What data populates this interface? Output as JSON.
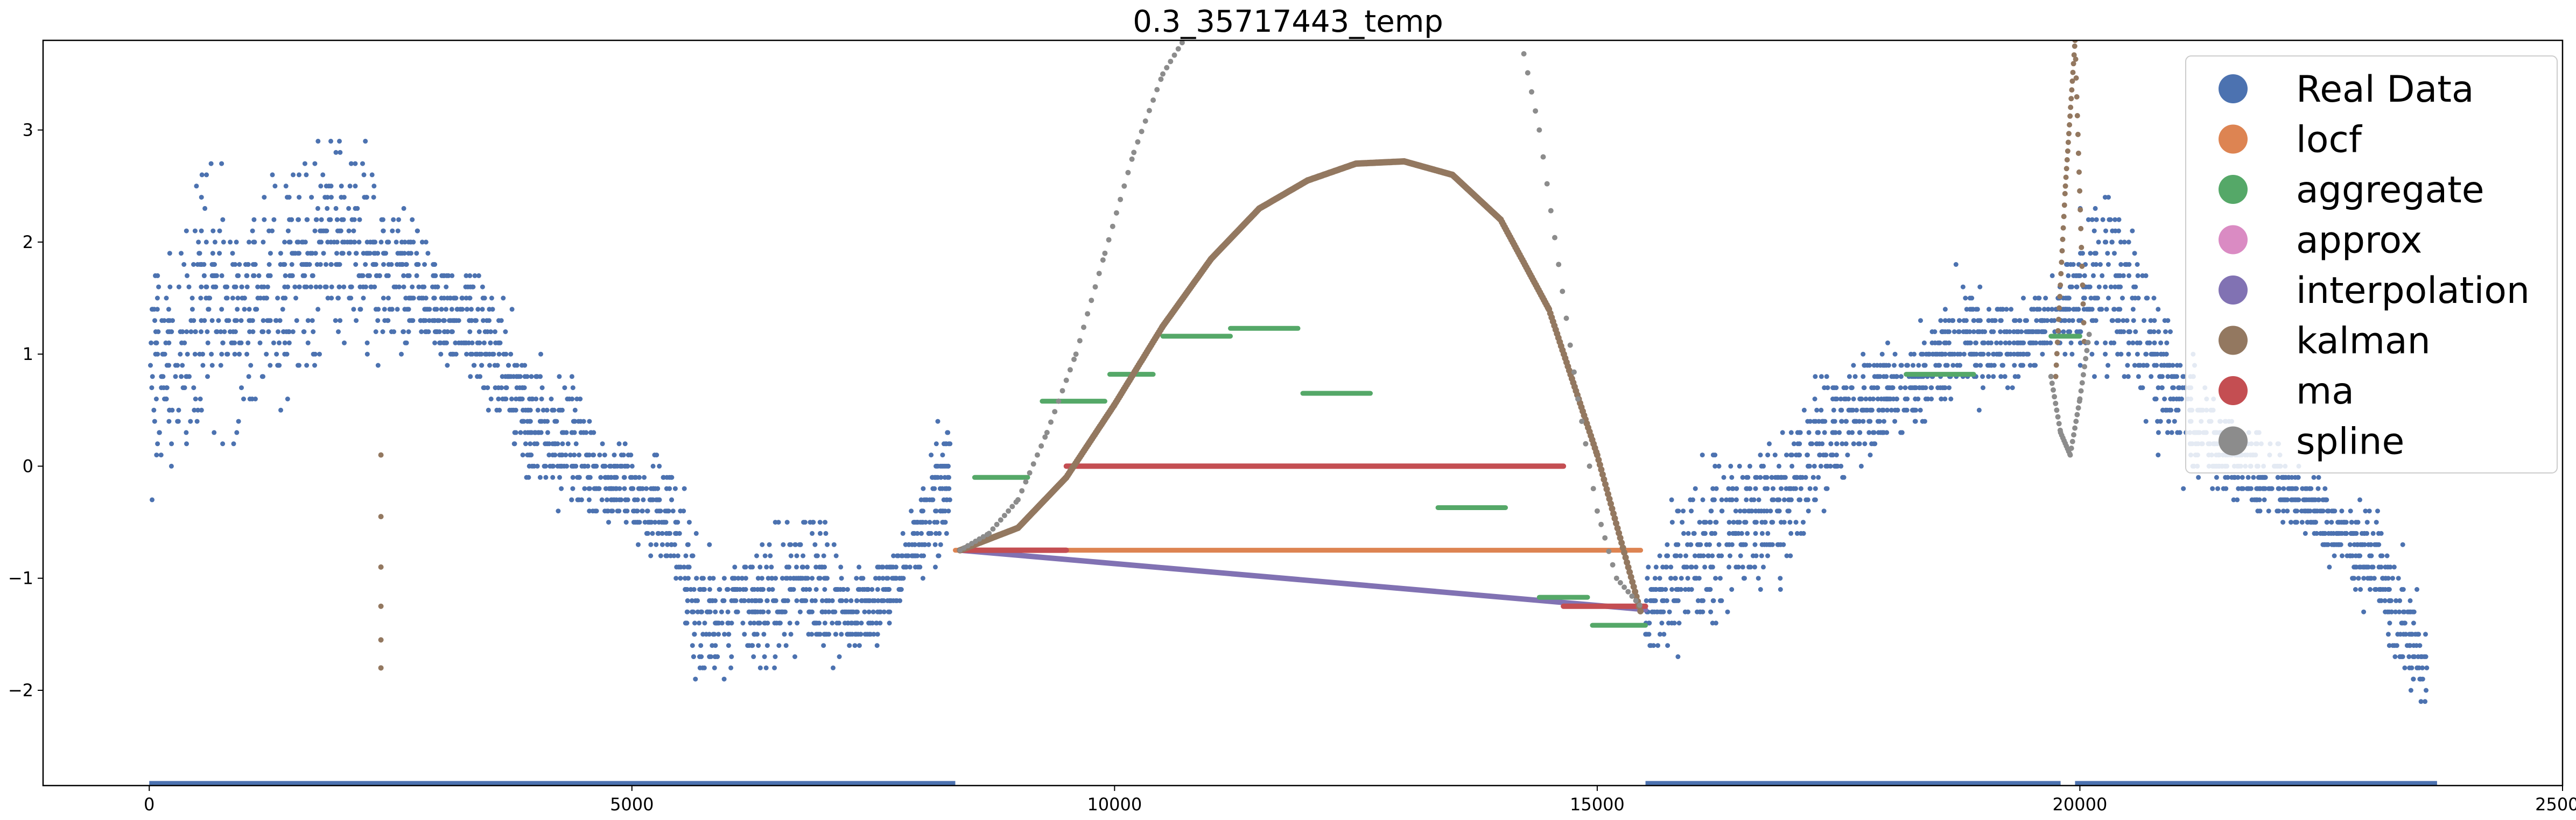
{
  "chart_data": {
    "type": "scatter",
    "title": "0.3_35717443_temp",
    "xlabel": "",
    "ylabel": "",
    "xlim": [
      -1100,
      25000
    ],
    "ylim": [
      -2.85,
      3.8
    ],
    "xticks": [
      0,
      5000,
      10000,
      15000,
      20000,
      25000
    ],
    "yticks": [
      -2,
      -1,
      0,
      1,
      2,
      3
    ],
    "xtick_labels": [
      "0",
      "5000",
      "10000",
      "15000",
      "20000",
      "25000"
    ],
    "ytick_labels": [
      "−2",
      "−1",
      "0",
      "1",
      "2",
      "3"
    ],
    "grid": false,
    "legend_position": "top-right",
    "series": [
      {
        "name": "Real Data",
        "color": "#4c72b0",
        "envelope": [
          [
            0,
            -0.6,
            2.0
          ],
          [
            300,
            -0.2,
            2.2
          ],
          [
            600,
            0.2,
            3.2
          ],
          [
            900,
            0.0,
            2.5
          ],
          [
            1200,
            0.2,
            2.8
          ],
          [
            1500,
            0.6,
            2.9
          ],
          [
            1800,
            0.8,
            3.1
          ],
          [
            2100,
            0.9,
            3.1
          ],
          [
            2400,
            0.7,
            2.7
          ],
          [
            2700,
            0.8,
            2.3
          ],
          [
            3000,
            0.7,
            2.1
          ],
          [
            3300,
            0.6,
            1.9
          ],
          [
            3600,
            0.2,
            1.8
          ],
          [
            3900,
            -0.3,
            1.2
          ],
          [
            4200,
            -0.5,
            1.0
          ],
          [
            4500,
            -0.6,
            0.8
          ],
          [
            4800,
            -0.7,
            0.4
          ],
          [
            5100,
            -0.8,
            0.2
          ],
          [
            5400,
            -1.2,
            0.3
          ],
          [
            5700,
            -2.2,
            -0.6
          ],
          [
            6000,
            -1.9,
            -0.6
          ],
          [
            6300,
            -1.9,
            -0.7
          ],
          [
            6600,
            -1.9,
            -0.3
          ],
          [
            6900,
            -1.8,
            -0.1
          ],
          [
            7200,
            -1.8,
            -0.8
          ],
          [
            7500,
            -1.7,
            -0.8
          ],
          [
            7800,
            -1.3,
            -0.6
          ],
          [
            8100,
            -1.1,
            0.3
          ],
          [
            8300,
            -0.8,
            0.6
          ],
          [
            15500,
            -1.9,
            -0.9
          ],
          [
            15800,
            -1.8,
            -0.2
          ],
          [
            16100,
            -1.6,
            0.2
          ],
          [
            16400,
            -1.6,
            0.5
          ],
          [
            16700,
            -1.3,
            0.4
          ],
          [
            17000,
            -1.0,
            0.6
          ],
          [
            17300,
            -0.8,
            1.0
          ],
          [
            17600,
            -0.2,
            1.2
          ],
          [
            17900,
            0.0,
            1.2
          ],
          [
            18200,
            0.2,
            1.1
          ],
          [
            18500,
            0.3,
            1.5
          ],
          [
            18800,
            0.4,
            1.9
          ],
          [
            19100,
            0.6,
            1.6
          ],
          [
            19400,
            0.7,
            1.5
          ],
          [
            19700,
            0.9,
            1.7
          ],
          [
            20000,
            0.9,
            2.3
          ],
          [
            20300,
            0.6,
            2.7
          ],
          [
            20600,
            0.3,
            2.2
          ],
          [
            20900,
            0.0,
            1.5
          ],
          [
            21200,
            -0.3,
            1.0
          ],
          [
            21500,
            -0.4,
            0.6
          ],
          [
            21800,
            -0.5,
            0.4
          ],
          [
            22100,
            -0.6,
            0.2
          ],
          [
            22400,
            -0.8,
            0.1
          ],
          [
            22700,
            -1.0,
            -0.2
          ],
          [
            23000,
            -1.5,
            -0.1
          ],
          [
            23300,
            -2.0,
            -0.6
          ],
          [
            23600,
            -2.35,
            -1.3
          ]
        ],
        "gaps": [
          [
            8400,
            15400
          ]
        ],
        "bottom_bars": [
          [
            0,
            8350
          ],
          [
            15500,
            19800
          ],
          [
            19950,
            23700
          ]
        ]
      },
      {
        "name": "locf",
        "color": "#dd8452",
        "segments": [
          [
            [
              8350,
              -0.75
            ],
            [
              15450,
              -0.75
            ]
          ]
        ]
      },
      {
        "name": "aggregate",
        "color": "#55a868",
        "segments": [
          [
            [
              8550,
              -0.1
            ],
            [
              9100,
              -0.1
            ]
          ],
          [
            [
              9250,
              0.58
            ],
            [
              9900,
              0.58
            ]
          ],
          [
            [
              9950,
              0.82
            ],
            [
              10400,
              0.82
            ]
          ],
          [
            [
              10500,
              1.16
            ],
            [
              11200,
              1.16
            ]
          ],
          [
            [
              11200,
              1.23
            ],
            [
              11900,
              1.23
            ]
          ],
          [
            [
              11950,
              0.65
            ],
            [
              12650,
              0.65
            ]
          ],
          [
            [
              13350,
              -0.37
            ],
            [
              14050,
              -0.37
            ]
          ],
          [
            [
              14400,
              -1.17
            ],
            [
              14900,
              -1.17
            ]
          ],
          [
            [
              14950,
              -1.42
            ],
            [
              15500,
              -1.42
            ]
          ],
          [
            [
              18200,
              0.82
            ],
            [
              18900,
              0.82
            ]
          ],
          [
            [
              19700,
              1.16
            ],
            [
              20000,
              1.16
            ]
          ]
        ]
      },
      {
        "name": "approx",
        "color": "#da8bc3",
        "segments": []
      },
      {
        "name": "interpolation",
        "color": "#8172b3",
        "segments": [
          [
            [
              8400,
              -0.75
            ],
            [
              15500,
              -1.28
            ]
          ]
        ]
      },
      {
        "name": "kalman",
        "color": "#937860",
        "curve": [
          [
            8400,
            -0.75
          ],
          [
            9000,
            -0.55
          ],
          [
            9500,
            -0.1
          ],
          [
            10000,
            0.55
          ],
          [
            10500,
            1.25
          ],
          [
            11000,
            1.85
          ],
          [
            11500,
            2.3
          ],
          [
            12000,
            2.55
          ],
          [
            12500,
            2.7
          ],
          [
            13000,
            2.72
          ],
          [
            13500,
            2.6
          ],
          [
            14000,
            2.2
          ],
          [
            14500,
            1.4
          ],
          [
            15000,
            0.1
          ],
          [
            15450,
            -1.3
          ]
        ],
        "spike": [
          [
            19750,
            0.8
          ],
          [
            19850,
            2.5
          ],
          [
            19950,
            3.8
          ],
          [
            20050,
            1.0
          ]
        ],
        "dropout_x": 2400,
        "dropout_y": [
          0.1,
          -0.45,
          -0.9,
          -1.25,
          -1.55,
          -1.8
        ]
      },
      {
        "name": "ma",
        "color": "#c44e52",
        "segments": [
          [
            [
              8400,
              -0.75
            ],
            [
              9500,
              -0.75
            ]
          ],
          [
            [
              9500,
              0.0
            ],
            [
              14650,
              0.0
            ]
          ],
          [
            [
              14650,
              -1.25
            ],
            [
              15500,
              -1.25
            ]
          ]
        ]
      },
      {
        "name": "spline",
        "color": "#8c8c8c",
        "curve": [
          [
            8400,
            -0.75
          ],
          [
            8700,
            -0.6
          ],
          [
            9000,
            -0.3
          ],
          [
            9300,
            0.3
          ],
          [
            9600,
            1.0
          ],
          [
            9900,
            1.9
          ],
          [
            10200,
            2.8
          ],
          [
            10500,
            3.5
          ],
          [
            10750,
            3.85
          ]
        ],
        "curve2": [
          [
            14200,
            3.85
          ],
          [
            14400,
            3.0
          ],
          [
            14600,
            1.8
          ],
          [
            14800,
            0.6
          ],
          [
            15000,
            -0.4
          ],
          [
            15200,
            -1.0
          ],
          [
            15450,
            -1.25
          ]
        ],
        "spike": [
          [
            19700,
            0.8
          ],
          [
            19800,
            0.3
          ],
          [
            19900,
            0.1
          ],
          [
            20000,
            0.6
          ],
          [
            20100,
            1.2
          ]
        ]
      }
    ]
  }
}
